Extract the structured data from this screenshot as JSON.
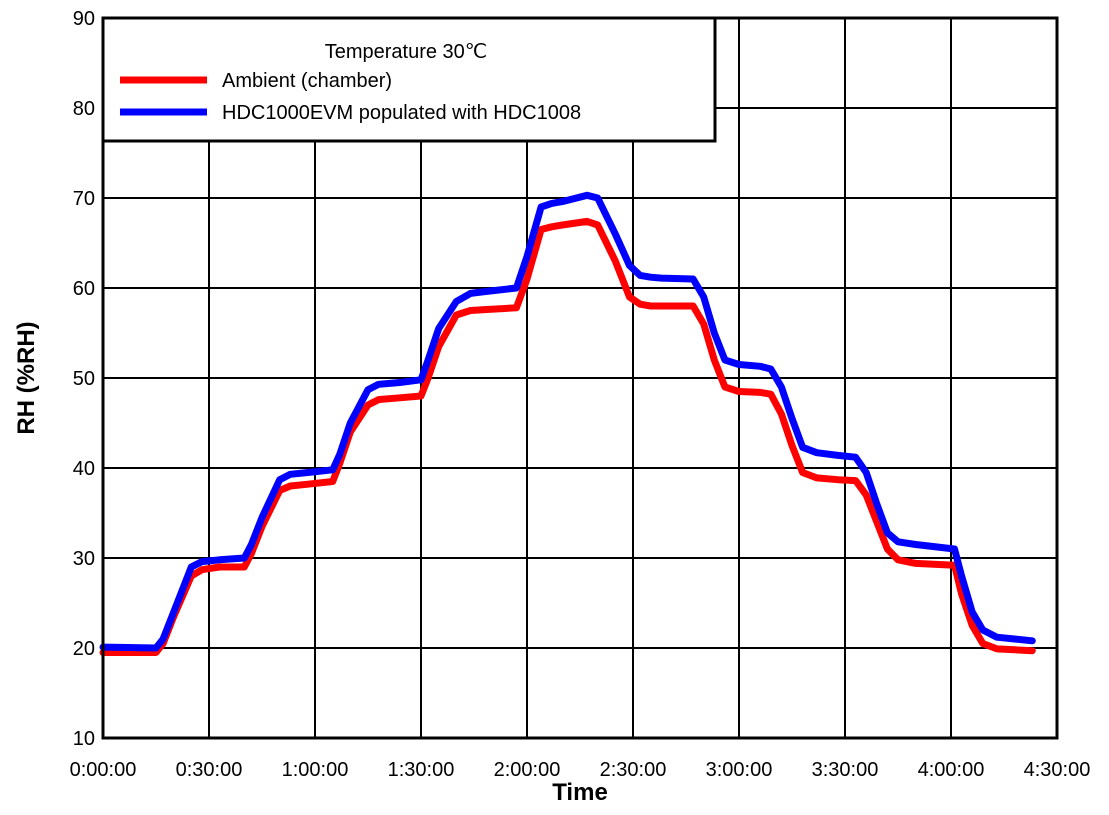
{
  "chart_data": {
    "type": "line",
    "xlabel": "Time",
    "ylabel": "RH (%RH)",
    "x_unit": "minutes",
    "xlim": [
      0,
      270
    ],
    "ylim": [
      10,
      90
    ],
    "x_ticks": [
      {
        "value": 0,
        "label": "0:00:00"
      },
      {
        "value": 30,
        "label": "0:30:00"
      },
      {
        "value": 60,
        "label": "1:00:00"
      },
      {
        "value": 90,
        "label": "1:30:00"
      },
      {
        "value": 120,
        "label": "2:00:00"
      },
      {
        "value": 150,
        "label": "2:30:00"
      },
      {
        "value": 180,
        "label": "3:00:00"
      },
      {
        "value": 210,
        "label": "3:30:00"
      },
      {
        "value": 240,
        "label": "4:00:00"
      },
      {
        "value": 270,
        "label": "4:30:00"
      }
    ],
    "y_ticks": [
      10,
      20,
      30,
      40,
      50,
      60,
      70,
      80,
      90
    ],
    "grid": true,
    "legend": {
      "title": "Temperature 30℃",
      "placement": "top-left"
    },
    "series": [
      {
        "name": "Ambient (chamber)",
        "color": "#ff0000",
        "x": [
          0,
          15,
          17,
          20,
          25,
          28,
          33,
          40,
          42,
          45,
          50,
          53,
          58,
          65,
          67,
          70,
          75,
          78,
          84,
          90,
          92,
          95,
          100,
          104,
          108,
          117,
          120,
          124,
          127,
          130,
          137,
          140,
          145,
          149,
          152,
          155,
          158,
          167,
          170,
          173,
          176,
          180,
          186,
          189,
          192,
          195,
          198,
          202,
          208,
          213,
          216,
          219,
          222,
          225,
          230,
          241,
          243,
          246,
          249,
          253,
          258,
          263
        ],
        "y": [
          19.5,
          19.5,
          20.5,
          23.5,
          28,
          28.7,
          29,
          29,
          30.5,
          33.5,
          37.5,
          38,
          38.2,
          38.5,
          40.5,
          44,
          47,
          47.6,
          47.8,
          48,
          50,
          53.5,
          57,
          57.5,
          57.6,
          57.8,
          61,
          66.5,
          66.8,
          67,
          67.4,
          67,
          63,
          59,
          58.2,
          58,
          58,
          58,
          56,
          52,
          49,
          48.5,
          48.4,
          48.2,
          46,
          42.5,
          39.5,
          38.9,
          38.7,
          38.6,
          37,
          34,
          31,
          29.8,
          29.4,
          29.2,
          26,
          22.5,
          20.5,
          19.9,
          19.8,
          19.7
        ]
      },
      {
        "name": "HDC1000EVM populated with HDC1008",
        "color": "#0000ff",
        "x": [
          0,
          15,
          17,
          20,
          25,
          28,
          33,
          40,
          42,
          45,
          50,
          53,
          58,
          65,
          67,
          70,
          75,
          78,
          84,
          90,
          92,
          95,
          100,
          104,
          108,
          117,
          120,
          124,
          127,
          130,
          137,
          140,
          145,
          149,
          152,
          155,
          158,
          167,
          170,
          173,
          176,
          180,
          186,
          189,
          192,
          195,
          198,
          202,
          208,
          213,
          216,
          219,
          222,
          225,
          230,
          241,
          243,
          246,
          249,
          253,
          258,
          263
        ],
        "y": [
          20.1,
          20,
          21,
          24,
          29,
          29.6,
          29.8,
          30,
          31.5,
          34.5,
          38.7,
          39.3,
          39.5,
          39.8,
          41.5,
          45,
          48.7,
          49.3,
          49.5,
          49.8,
          52,
          55.5,
          58.5,
          59.4,
          59.6,
          60,
          63.5,
          69,
          69.4,
          69.6,
          70.3,
          70,
          66,
          62.5,
          61.4,
          61.2,
          61.1,
          61,
          59,
          55,
          52,
          51.5,
          51.3,
          51,
          49,
          45.5,
          42.3,
          41.7,
          41.4,
          41.2,
          39.5,
          36,
          32.8,
          31.8,
          31.5,
          31,
          28,
          24,
          22,
          21.2,
          21,
          20.8
        ]
      }
    ]
  }
}
